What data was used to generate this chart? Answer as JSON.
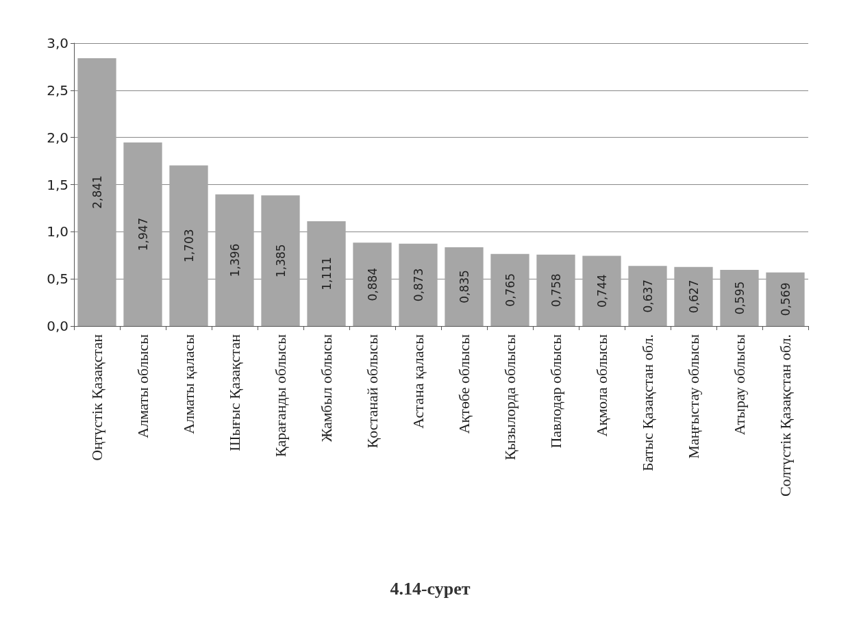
{
  "chart_data": {
    "type": "bar",
    "categories": [
      "Оңтүстік Қазақстан",
      "Алматы облысы",
      "Алматы қаласы",
      "Шығыс Қазақстан",
      "Қарағанды облысы",
      "Жамбыл облысы",
      "Қостанай облысы",
      "Астана қаласы",
      "Ақтөбе облысы",
      "Қызылорда облысы",
      "Павлодар облысы",
      "Ақмола облысы",
      "Батыс Қазақстан обл.",
      "Маңғыстау облысы",
      "Атырау облысы",
      "Солтүстік Қазақстан обл."
    ],
    "values": [
      2.841,
      1.947,
      1.703,
      1.396,
      1.385,
      1.111,
      0.884,
      0.873,
      0.835,
      0.765,
      0.758,
      0.744,
      0.637,
      0.627,
      0.595,
      0.569
    ],
    "value_labels": [
      "2,841",
      "1,947",
      "1,703",
      "1,396",
      "1,385",
      "1,111",
      "0,884",
      "0,873",
      "0,835",
      "0,765",
      "0,758",
      "0,744",
      "0,637",
      "0,627",
      "0,595",
      "0,569"
    ],
    "color": "#a6a6a6",
    "ylim": [
      0,
      3
    ],
    "yticks": [
      {
        "value": 0,
        "label": "0,0"
      },
      {
        "value": 0.5,
        "label": "0,5"
      },
      {
        "value": 1,
        "label": "1,0"
      },
      {
        "value": 1.5,
        "label": "1,5"
      },
      {
        "value": 2,
        "label": "2,0"
      },
      {
        "value": 2.5,
        "label": "2,5"
      },
      {
        "value": 3,
        "label": "3,0"
      }
    ],
    "grid": "y",
    "annotations": [
      "4.14-сурет"
    ]
  }
}
